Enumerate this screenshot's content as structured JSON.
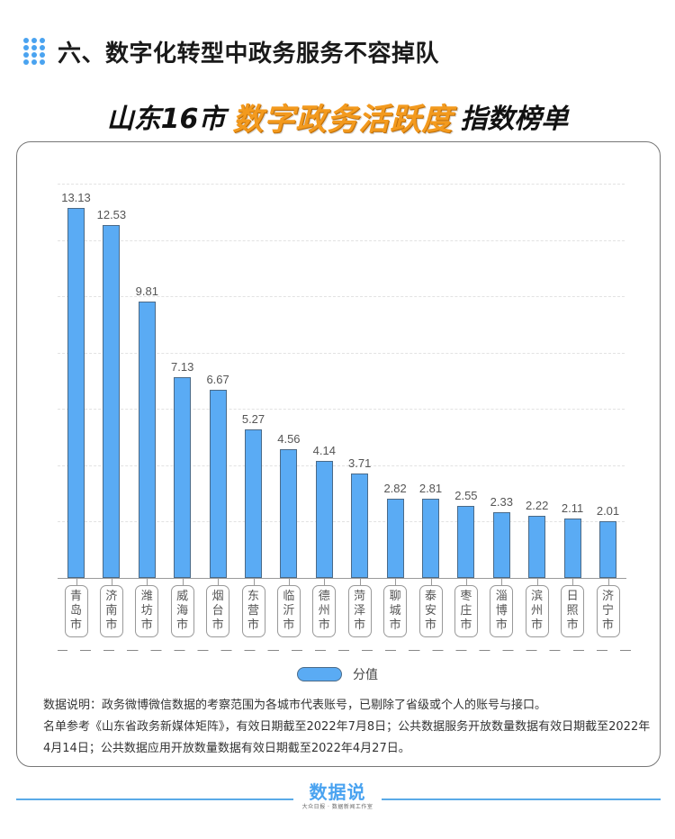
{
  "header": {
    "section_title": "六、数字化转型中政务服务不容掉队"
  },
  "banner": {
    "part1": "山东16市",
    "part2": "数字政务活跃度",
    "part3": "指数榜单"
  },
  "colors": {
    "bar": "#5aabf4",
    "bar_border": "#4a6a88",
    "accent_orange": "#f39a1e",
    "dots_blue": "#4aa3f0"
  },
  "chart_data": {
    "type": "bar",
    "title": "山东16市数字政务活跃度指数榜单",
    "categories": [
      "青岛市",
      "济南市",
      "潍坊市",
      "威海市",
      "烟台市",
      "东营市",
      "临沂市",
      "德州市",
      "菏泽市",
      "聊城市",
      "泰安市",
      "枣庄市",
      "淄博市",
      "滨州市",
      "日照市",
      "济宁市"
    ],
    "series": [
      {
        "name": "分值",
        "values": [
          13.13,
          12.53,
          9.81,
          7.13,
          6.67,
          5.27,
          4.56,
          4.14,
          3.71,
          2.82,
          2.81,
          2.55,
          2.33,
          2.22,
          2.11,
          2.01
        ]
      }
    ],
    "value_labels": [
      "13.13",
      "12.53",
      "9.81",
      "7.13",
      "6.67",
      "5.27",
      "4.56",
      "4.14",
      "3.71",
      "2.82",
      "2.81",
      "2.55",
      "2.33",
      "2.22",
      "2.11",
      "2.01"
    ],
    "xlabel": "",
    "ylabel": "",
    "ylim": [
      0,
      14
    ],
    "gridlines": [
      2,
      4,
      6,
      8,
      10,
      12,
      14
    ],
    "grid": true,
    "legend_position": "bottom"
  },
  "legend": {
    "label": "分值"
  },
  "notes": {
    "line1": "数据说明：政务微博微信数据的考察范围为各城市代表账号，已剔除了省级或个人的账号与接口。",
    "line2": "名单参考《山东省政务新媒体矩阵》，有效日期截至2022年7月8日；公共数据服务开放数量数据有效日期截至2022年4月14日；公共数据应用开放数量数据有效日期截至2022年4月27日。"
  },
  "footer": {
    "logo_text": "数据说",
    "logo_subtext": "大众日报 · 数据新闻工作室"
  }
}
